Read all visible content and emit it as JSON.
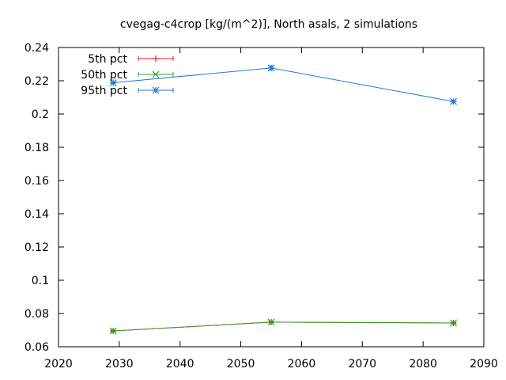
{
  "chart_data": {
    "type": "line",
    "title": "cvegag-c4crop [kg/(m^2)], North asals, 2 simulations",
    "xlabel": "",
    "ylabel": "",
    "xlim": [
      2020,
      2090
    ],
    "ylim": [
      0.06,
      0.24
    ],
    "x_ticks": [
      "2020",
      "2030",
      "2040",
      "2050",
      "2060",
      "2070",
      "2080",
      "2090"
    ],
    "y_ticks": [
      "0.06",
      "0.08",
      "0.1",
      "0.12",
      "0.14",
      "0.16",
      "0.18",
      "0.2",
      "0.22",
      "0.24"
    ],
    "grid": false,
    "legend_position": "top-left",
    "series": [
      {
        "name": "5th pct",
        "color": "#e41a1c",
        "marker": "plus",
        "points": [
          {
            "x": 2029,
            "y": 0.0695,
            "err": 0.0005
          },
          {
            "x": 2055,
            "y": 0.0748,
            "err": 0.0005
          },
          {
            "x": 2085,
            "y": 0.0743,
            "err": 0.0005
          }
        ]
      },
      {
        "name": "50th pct",
        "color": "#33a02c",
        "marker": "cross",
        "points": [
          {
            "x": 2029,
            "y": 0.0695,
            "err": 0.0005
          },
          {
            "x": 2055,
            "y": 0.0748,
            "err": 0.0005
          },
          {
            "x": 2085,
            "y": 0.0743,
            "err": 0.0005
          }
        ]
      },
      {
        "name": "95th pct",
        "color": "#1f78d4",
        "marker": "star",
        "points": [
          {
            "x": 2029,
            "y": 0.2188,
            "err": 0.0005
          },
          {
            "x": 2055,
            "y": 0.2277,
            "err": 0.0012
          },
          {
            "x": 2085,
            "y": 0.2075,
            "err": 0.0008
          }
        ]
      }
    ]
  }
}
